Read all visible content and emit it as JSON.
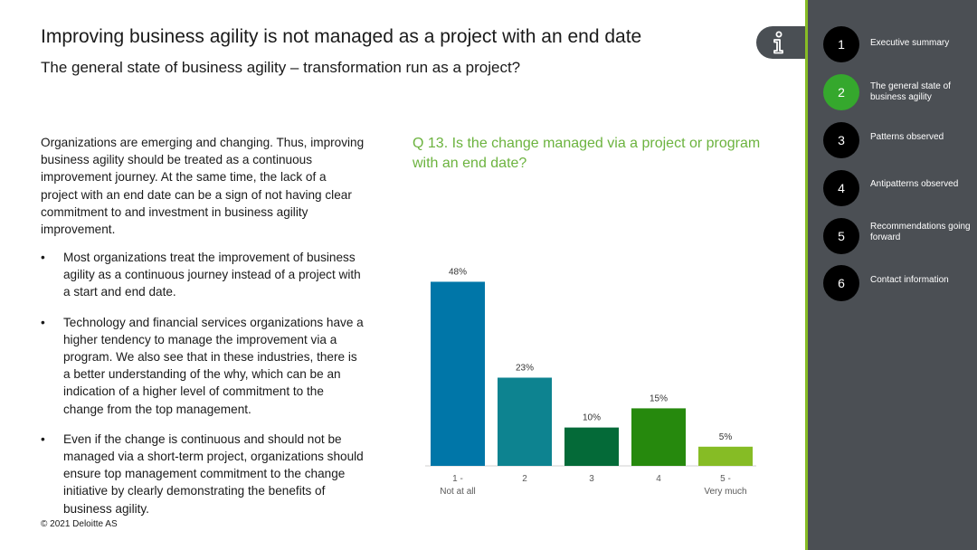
{
  "header": {
    "title": "Improving business agility is not managed as a project with an end date",
    "subtitle": "The general state of business agility – transformation run as a project?"
  },
  "body": {
    "intro": "Organizations are emerging and changing. Thus, improving business agility should be treated as a continuous improvement journey. At the same time, the lack of a project with an end date can be a sign of not having clear commitment to and investment in business agility improvement.",
    "bullet_symbol": "•",
    "bullets": [
      "Most organizations treat the improvement of business agility as a continuous journey instead of a project with a start and end date.",
      "Technology and financial services organizations have a higher tendency to manage the improvement via a program. We also see that in these industries, there is a better understanding of the why, which can be an indication of a higher level of commitment to the change from the top management.",
      "Even if the change is continuous and should not be managed via a short-term project, organizations should ensure top management commitment to the change initiative by clearly demonstrating the benefits of business agility."
    ]
  },
  "footer": {
    "copyright": "© 2021 Deloitte AS"
  },
  "sidebar": {
    "items": [
      {
        "num": "1",
        "label": "Executive summary",
        "active": false
      },
      {
        "num": "2",
        "label": "The general state of business agility",
        "active": true
      },
      {
        "num": "3",
        "label": "Patterns observed",
        "active": false
      },
      {
        "num": "4",
        "label": "Antipatterns observed",
        "active": false
      },
      {
        "num": "5",
        "label": "Recommendations going forward",
        "active": false
      },
      {
        "num": "6",
        "label": "Contact information",
        "active": false
      }
    ]
  },
  "colors": {
    "accent_green": "#86bc25",
    "question_green": "#6cb33f",
    "sidebar_bg": "#4b4f54"
  },
  "chart_data": {
    "type": "bar",
    "title": "Q 13. Is the change managed via a project or program with an end date?",
    "categories": [
      [
        "1 -",
        "Not at all"
      ],
      [
        "2"
      ],
      [
        "3"
      ],
      [
        "4"
      ],
      [
        "5 -",
        "Very much"
      ]
    ],
    "values": [
      48,
      23,
      10,
      15,
      5
    ],
    "value_suffix": "%",
    "colors": [
      "#0076a8",
      "#0d8390",
      "#046a38",
      "#26890d",
      "#86bc25"
    ],
    "ylim": [
      0,
      50
    ],
    "grid": false,
    "legend": false
  }
}
